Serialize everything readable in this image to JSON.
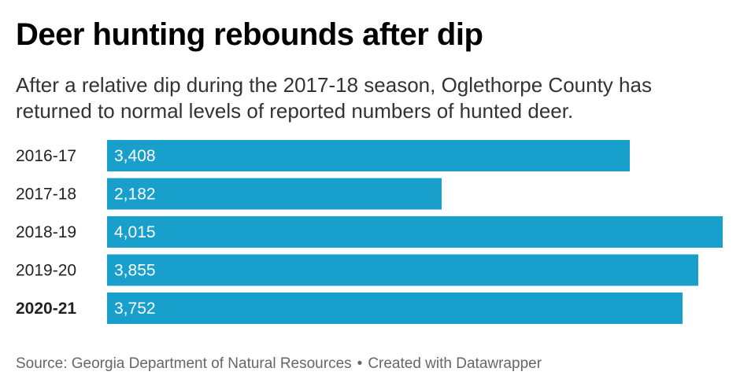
{
  "header": {
    "title": "Deer hunting rebounds after dip",
    "subtitle": "After a relative dip during the 2017-18 season, Oglethorpe County has returned to normal levels of reported numbers of hunted deer."
  },
  "chart_data": {
    "type": "bar",
    "orientation": "horizontal",
    "categories": [
      "2016-17",
      "2017-18",
      "2018-19",
      "2019-20",
      "2020-21"
    ],
    "values": [
      3408,
      2182,
      4015,
      3855,
      3752
    ],
    "value_labels": [
      "3,408",
      "2,182",
      "4,015",
      "3,855",
      "3,752"
    ],
    "highlighted_category": "2020-21",
    "xlim": [
      0,
      4015
    ],
    "grid": false,
    "legend": "none",
    "bar_color": "#189fcc",
    "label_color": "#ffffff"
  },
  "footer": {
    "source": "Source: Georgia Department of Natural Resources",
    "separator": "•",
    "credit": "Created with Datawrapper"
  }
}
